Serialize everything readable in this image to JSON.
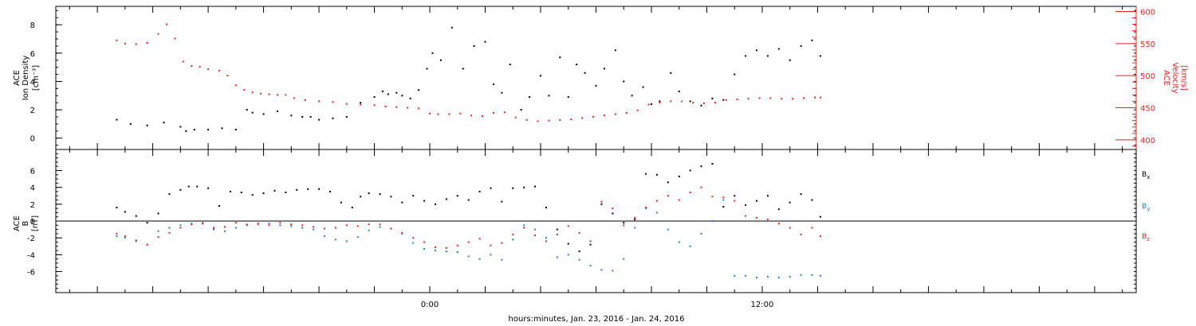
{
  "colors": {
    "black": "#000000",
    "red": "#e8231e",
    "blue": "#1f7fd6"
  },
  "chart_data": [
    {
      "type": "scatter",
      "panel": "top",
      "ylabel_line1": "ACE",
      "ylabel_line2": "Ion Density",
      "ylabel_units": "[cm⁻³]",
      "ylim": [
        -0.8,
        9.3
      ],
      "yticks": [
        0,
        2,
        4,
        6,
        8
      ],
      "y2label_line1": "ACE",
      "y2label_line2": "Velocity",
      "y2label_units": "[km/s]",
      "y2lim": [
        385,
        608
      ],
      "y2ticks": [
        400,
        450,
        500,
        550,
        600
      ],
      "series": [
        {
          "color": "black",
          "axis": "left",
          "x": [
            -11.3,
            -10.8,
            -10.2,
            -9.6,
            -9.0,
            -8.8,
            -8.5,
            -8.0,
            -7.5,
            -7.0,
            -6.6,
            -6.4,
            -6.0,
            -5.5,
            -5.0,
            -4.6,
            -4.3,
            -4.0,
            -3.5,
            -3.0,
            -2.5,
            -2.0,
            -1.7,
            -1.5,
            -1.2,
            -1.0,
            -0.7,
            -0.4,
            -0.1,
            0.1,
            0.4,
            0.8,
            1.2,
            1.6,
            2.0,
            2.3,
            2.6,
            2.9,
            3.3,
            3.6,
            4.0,
            4.3,
            4.7,
            5.0,
            5.3,
            5.6,
            6.0,
            6.3,
            6.7,
            7.0,
            7.3,
            7.7,
            8.0,
            8.3,
            8.7,
            9.0,
            9.4,
            9.8,
            10.2,
            10.6,
            11.0,
            11.4,
            11.8,
            12.2,
            12.6,
            13.0,
            13.4,
            13.8,
            14.1
          ],
          "y": [
            1.3,
            1.0,
            0.9,
            1.1,
            0.8,
            0.5,
            0.6,
            0.6,
            0.7,
            0.6,
            2.0,
            1.8,
            1.7,
            1.9,
            1.6,
            1.5,
            1.5,
            1.3,
            1.4,
            1.5,
            2.5,
            2.9,
            3.3,
            3.1,
            3.2,
            3.0,
            2.8,
            3.4,
            4.9,
            6.0,
            5.5,
            7.8,
            4.9,
            6.5,
            6.8,
            3.8,
            3.2,
            5.2,
            2.0,
            2.9,
            4.4,
            3.0,
            5.7,
            2.9,
            5.2,
            4.6,
            3.7,
            4.9,
            6.2,
            4.0,
            3.0,
            3.6,
            2.4,
            2.6,
            4.6,
            3.3,
            2.6,
            2.3,
            2.8,
            2.7,
            4.5,
            5.8,
            6.2,
            5.8,
            6.3,
            5.5,
            6.5,
            6.9,
            5.8
          ]
        },
        {
          "color": "red",
          "axis": "right",
          "x": [
            -11.3,
            -11.0,
            -10.6,
            -10.2,
            -9.8,
            -9.5,
            -9.2,
            -8.9,
            -8.6,
            -8.3,
            -8.0,
            -7.6,
            -7.3,
            -7.0,
            -6.7,
            -6.4,
            -6.1,
            -5.8,
            -5.5,
            -5.2,
            -4.9,
            -4.5,
            -4.0,
            -3.5,
            -3.0,
            -2.5,
            -2.0,
            -1.6,
            -1.2,
            -0.8,
            -0.4,
            0.0,
            0.3,
            0.7,
            1.1,
            1.5,
            1.9,
            2.3,
            2.7,
            3.1,
            3.5,
            3.9,
            4.3,
            4.7,
            5.1,
            5.5,
            5.9,
            6.3,
            6.7,
            7.1,
            7.5,
            7.9,
            8.3,
            8.7,
            9.1,
            9.5,
            9.9,
            10.3,
            10.7,
            11.1,
            11.5,
            11.9,
            12.3,
            12.7,
            13.1,
            13.5,
            13.9,
            14.1
          ],
          "y": [
            555,
            550,
            549,
            551,
            565,
            580,
            558,
            522,
            515,
            514,
            510,
            508,
            500,
            485,
            478,
            474,
            472,
            471,
            470,
            470,
            465,
            462,
            460,
            459,
            456,
            455,
            454,
            452,
            451,
            450,
            449,
            441,
            440,
            440,
            441,
            438,
            437,
            442,
            443,
            435,
            431,
            429,
            430,
            431,
            432,
            434,
            436,
            438,
            440,
            442,
            446,
            455,
            458,
            460,
            460,
            458,
            457,
            458,
            462,
            463,
            464,
            465,
            465,
            464,
            464,
            465,
            466,
            466
          ]
        }
      ]
    },
    {
      "type": "scatter",
      "panel": "bottom",
      "ylabel_line1": "ACE",
      "ylabel_line2": "B",
      "ylabel_units": "[nT]",
      "ylim": [
        -8.5,
        8.5
      ],
      "yticks": [
        -6,
        -4,
        -2,
        0,
        2,
        4,
        6
      ],
      "zero_line": true,
      "series": [
        {
          "name": "Bx",
          "color": "black",
          "x": [
            -11.3,
            -11.0,
            -10.6,
            -10.2,
            -9.8,
            -9.4,
            -9.0,
            -8.7,
            -8.4,
            -8.0,
            -7.6,
            -7.2,
            -6.8,
            -6.4,
            -6.0,
            -5.6,
            -5.2,
            -4.8,
            -4.4,
            -4.0,
            -3.6,
            -3.2,
            -2.8,
            -2.5,
            -2.2,
            -1.8,
            -1.4,
            -1.0,
            -0.6,
            -0.2,
            0.2,
            0.6,
            1.0,
            1.4,
            1.8,
            2.2,
            2.6,
            3.0,
            3.4,
            3.8,
            4.2,
            4.6,
            5.0,
            5.4,
            5.8,
            6.2,
            6.6,
            7.0,
            7.4,
            7.8,
            8.2,
            8.6,
            9.0,
            9.4,
            9.8,
            10.2,
            10.6,
            11.0,
            11.4,
            11.8,
            12.2,
            12.6,
            13.0,
            13.4,
            13.8,
            14.1
          ],
          "y": [
            1.6,
            1.1,
            0.6,
            -0.2,
            0.9,
            3.2,
            3.7,
            4.1,
            4.1,
            3.9,
            1.8,
            3.5,
            3.4,
            3.1,
            3.3,
            3.6,
            3.4,
            3.7,
            3.8,
            3.8,
            3.5,
            2.2,
            1.6,
            2.9,
            3.3,
            3.2,
            2.9,
            2.2,
            3.0,
            2.4,
            2.0,
            2.6,
            3.0,
            2.5,
            3.5,
            3.9,
            2.3,
            3.9,
            4.0,
            4.1,
            1.6,
            -1.0,
            -2.7,
            -3.6,
            -2.8,
            2.0,
            0.9,
            -0.2,
            0.2,
            5.6,
            5.5,
            4.6,
            5.3,
            6.0,
            6.5,
            6.8,
            1.7,
            3.0,
            1.9,
            2.4,
            3.0,
            1.4,
            2.2,
            3.2,
            2.5,
            0.5
          ]
        },
        {
          "name": "By",
          "color": "blue",
          "x": [
            -11.3,
            -11.0,
            -10.6,
            -10.2,
            -9.8,
            -9.4,
            -9.0,
            -8.6,
            -8.2,
            -7.8,
            -7.4,
            -7.0,
            -6.6,
            -6.2,
            -5.8,
            -5.4,
            -5.0,
            -4.6,
            -4.2,
            -3.8,
            -3.4,
            -3.0,
            -2.6,
            -2.2,
            -1.8,
            -1.4,
            -1.0,
            -0.6,
            -0.2,
            0.2,
            0.6,
            1.0,
            1.4,
            1.8,
            2.2,
            2.6,
            3.0,
            3.4,
            3.8,
            4.2,
            4.6,
            5.0,
            5.4,
            5.8,
            6.2,
            6.6,
            7.0,
            7.4,
            7.8,
            8.2,
            8.6,
            9.0,
            9.4,
            9.8,
            10.2,
            10.6,
            11.0,
            11.4,
            11.8,
            12.2,
            12.6,
            13.0,
            13.4,
            13.8,
            14.1
          ],
          "y": [
            -1.8,
            -2.0,
            -2.4,
            -2.8,
            -1.2,
            -0.8,
            -0.5,
            -0.3,
            -0.2,
            -1.0,
            -1.2,
            -0.8,
            -0.5,
            -0.4,
            -0.3,
            -0.5,
            -0.6,
            -0.8,
            -1.0,
            -1.8,
            -2.2,
            -2.4,
            -1.9,
            -1.1,
            -0.7,
            -0.9,
            -1.5,
            -2.6,
            -3.3,
            -3.5,
            -3.6,
            -3.7,
            -4.2,
            -4.5,
            -4.0,
            -4.6,
            -2.2,
            -0.5,
            -1.0,
            -2.0,
            -4.3,
            -4.0,
            -4.6,
            -5.3,
            -5.8,
            -5.9,
            -4.5,
            -0.8,
            1.5,
            1.0,
            -1.0,
            -2.5,
            -3.0,
            -1.5,
            0.0,
            2.5,
            -6.5,
            -6.5,
            -6.7,
            -6.6,
            -6.7,
            -6.6,
            -6.4,
            -6.4,
            -6.5
          ]
        },
        {
          "name": "Bz",
          "color": "red",
          "x": [
            -11.3,
            -11.0,
            -10.6,
            -10.2,
            -9.8,
            -9.4,
            -9.0,
            -8.6,
            -8.2,
            -7.8,
            -7.4,
            -7.0,
            -6.6,
            -6.2,
            -5.8,
            -5.4,
            -5.0,
            -4.6,
            -4.2,
            -3.8,
            -3.4,
            -3.0,
            -2.6,
            -2.2,
            -1.8,
            -1.4,
            -1.0,
            -0.6,
            -0.2,
            0.2,
            0.6,
            1.0,
            1.4,
            1.8,
            2.2,
            2.6,
            3.0,
            3.4,
            3.8,
            4.2,
            4.6,
            5.0,
            5.4,
            5.8,
            6.2,
            6.6,
            7.0,
            7.4,
            7.8,
            8.2,
            8.6,
            9.0,
            9.4,
            9.8,
            10.2,
            10.6,
            11.0,
            11.4,
            11.8,
            12.2,
            12.6,
            13.0,
            13.4,
            13.8,
            14.1
          ],
          "y": [
            -1.5,
            -1.8,
            -2.3,
            -2.8,
            -1.9,
            -1.4,
            -0.8,
            -0.4,
            -0.3,
            -0.8,
            -0.7,
            -0.2,
            -0.4,
            -0.3,
            -0.5,
            -0.2,
            -0.4,
            -0.5,
            -0.7,
            -0.9,
            -0.8,
            -0.5,
            -0.6,
            -0.4,
            -0.4,
            -0.9,
            -1.4,
            -2.0,
            -2.5,
            -3.1,
            -3.2,
            -2.9,
            -2.5,
            -2.1,
            -2.9,
            -2.6,
            -1.6,
            -0.8,
            -1.7,
            -2.4,
            -1.6,
            -0.6,
            -1.4,
            -2.4,
            2.3,
            1.5,
            -0.5,
            0.4,
            1.6,
            2.4,
            3.0,
            2.5,
            3.4,
            4.0,
            2.9,
            2.8,
            2.4,
            0.6,
            0.4,
            0.2,
            -0.3,
            -0.8,
            -1.6,
            -0.8,
            -1.8
          ]
        }
      ]
    }
  ],
  "x_axis": {
    "xlim": [
      -13.5,
      25.5
    ],
    "labeled_ticks": [
      {
        "x": 0,
        "label": "0:00"
      },
      {
        "x": 12,
        "label": "12:00"
      }
    ],
    "xlabel": "hours:minutes, Jan. 23, 2016 - Jan. 24, 2016"
  }
}
